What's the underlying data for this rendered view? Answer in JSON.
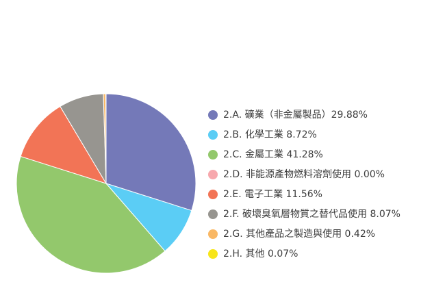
{
  "chart_data": {
    "type": "pie",
    "series": [
      {
        "label": "2.A. 礦業（非金屬製品）29.88%",
        "value": 29.88,
        "color": "#7479b8"
      },
      {
        "label": "2.B. 化學工業 8.72%",
        "value": 8.72,
        "color": "#5bcdf5"
      },
      {
        "label": "2.C. 金屬工業 41.28%",
        "value": 41.28,
        "color": "#93c86c"
      },
      {
        "label": "2.D. 非能源產物燃料溶劑使用 0.00%",
        "value": 0.0,
        "color": "#f7a8ad"
      },
      {
        "label": "2.E. 電子工業 11.56%",
        "value": 11.56,
        "color": "#f27456"
      },
      {
        "label": "2.F. 破壞臭氧層物質之替代品使用 8.07%",
        "value": 8.07,
        "color": "#979590"
      },
      {
        "label": "2.G. 其他產品之製造與使用 0.42%",
        "value": 0.42,
        "color": "#f9b865"
      },
      {
        "label": "2.H. 其他 0.07%",
        "value": 0.07,
        "color": "#f7e51a"
      }
    ],
    "start_angle": "12 o'clock",
    "direction": "clockwise",
    "legend_position": "right"
  }
}
